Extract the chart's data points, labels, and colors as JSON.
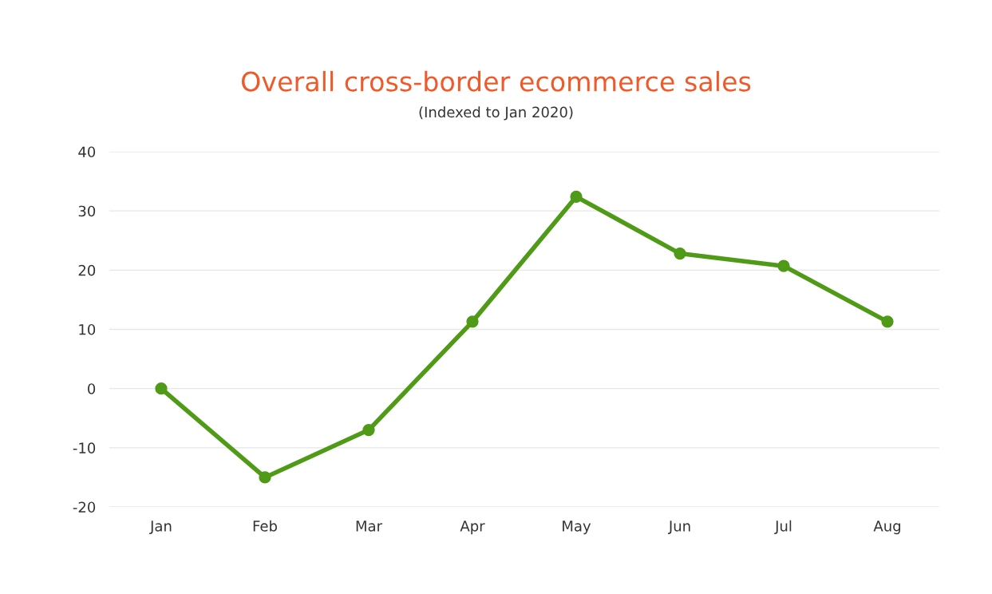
{
  "chart_data": {
    "type": "line",
    "title": "Overall cross-border ecommerce sales",
    "subtitle": "(Indexed to Jan 2020)",
    "categories": [
      "Jan",
      "Feb",
      "Mar",
      "Apr",
      "May",
      "Jun",
      "Jul",
      "Aug"
    ],
    "series": [
      {
        "color": "#4f9a16",
        "values": [
          0,
          -15,
          -7,
          11.3,
          32.4,
          22.8,
          20.7,
          11.3
        ]
      }
    ],
    "ylim": [
      -20,
      40
    ],
    "yticks": [
      -20,
      -10,
      0,
      10,
      20,
      30,
      40
    ],
    "grid": "y",
    "marker": "circle",
    "line_style": "solid",
    "legend": false
  }
}
